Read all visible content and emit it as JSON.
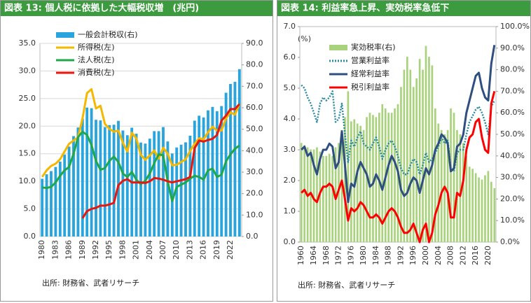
{
  "chart_data": [
    {
      "type": "combo",
      "title": "図表 13: 個人税に依拠した大幅税収増　(兆円)",
      "source": "出所: 財務省、武者リサーチ",
      "categories": [
        "1980",
        null,
        null,
        "1983",
        null,
        null,
        "1986",
        null,
        null,
        "1989",
        null,
        null,
        "1992",
        null,
        null,
        "1995",
        null,
        null,
        "1998",
        null,
        null,
        "2001",
        null,
        null,
        "2004",
        null,
        null,
        "2007",
        null,
        null,
        "2010",
        null,
        null,
        "2013",
        null,
        null,
        "2016",
        null,
        null,
        "2019",
        null,
        null,
        "2022",
        null,
        null
      ],
      "ylim": [
        0,
        35
      ],
      "yticks": [
        {
          "value": 0,
          "label": "0.0"
        },
        {
          "value": 5,
          "label": "5.0"
        },
        {
          "value": 10,
          "label": "10.0"
        },
        {
          "value": 15,
          "label": "15.0"
        },
        {
          "value": 20,
          "label": "20.0"
        },
        {
          "value": 25,
          "label": "25.0"
        },
        {
          "value": 30,
          "label": "30.0"
        },
        {
          "value": 35,
          "label": "35.0"
        }
      ],
      "y2lim": [
        0,
        90
      ],
      "y2ticks": [
        {
          "value": 0,
          "label": "0.0"
        },
        {
          "value": 10,
          "label": "10.0"
        },
        {
          "value": 20,
          "label": "20.0"
        },
        {
          "value": 30,
          "label": "30.0"
        },
        {
          "value": 40,
          "label": "40.0"
        },
        {
          "value": 50,
          "label": "50.0"
        },
        {
          "value": 60,
          "label": "60.0"
        },
        {
          "value": 70,
          "label": "70.0"
        },
        {
          "value": 80,
          "label": "80.0"
        },
        {
          "value": 90,
          "label": "90.0"
        }
      ],
      "grid": true,
      "series": [
        {
          "name": "一般会計税収(右)",
          "type": "bar",
          "axis": "y2",
          "color": "#2aa4dc",
          "values": [
            26.9,
            29.0,
            30.5,
            32.4,
            34.9,
            38.2,
            41.9,
            46.8,
            50.8,
            54.9,
            60.1,
            59.8,
            54.4,
            54.1,
            51.0,
            51.9,
            52.1,
            53.9,
            49.4,
            47.2,
            50.7,
            47.9,
            43.8,
            43.3,
            45.6,
            49.1,
            49.1,
            51.0,
            44.3,
            38.7,
            41.5,
            42.8,
            43.9,
            47.0,
            54.0,
            56.3,
            55.5,
            58.8,
            60.4,
            58.4,
            60.8,
            67.0,
            71.1,
            72.1,
            78.0
          ]
        },
        {
          "name": "所得税(左)",
          "type": "line",
          "color": "#f5b800",
          "values": [
            10.8,
            12.0,
            12.8,
            13.2,
            14.0,
            15.4,
            16.8,
            17.4,
            18.0,
            21.4,
            26.0,
            26.7,
            23.2,
            23.7,
            20.4,
            19.5,
            19.0,
            19.2,
            17.0,
            15.4,
            18.8,
            17.8,
            14.8,
            13.9,
            14.7,
            15.6,
            14.1,
            16.1,
            15.0,
            12.9,
            13.0,
            13.5,
            14.0,
            15.5,
            16.8,
            17.8,
            17.6,
            18.9,
            19.9,
            19.2,
            19.2,
            21.4,
            22.5,
            22.1,
            24.0
          ]
        },
        {
          "name": "法人税(左)",
          "type": "line",
          "color": "#1ea84a",
          "values": [
            8.9,
            8.8,
            9.0,
            9.8,
            11.0,
            12.0,
            12.6,
            15.0,
            18.0,
            19.0,
            18.4,
            16.6,
            13.7,
            12.1,
            12.4,
            13.7,
            14.5,
            13.5,
            11.4,
            10.8,
            11.7,
            10.3,
            9.5,
            10.1,
            11.4,
            13.3,
            14.9,
            14.7,
            10.0,
            6.4,
            9.0,
            9.4,
            9.8,
            10.5,
            11.0,
            10.8,
            10.3,
            12.0,
            12.3,
            10.8,
            11.2,
            13.6,
            14.9,
            15.9,
            16.5
          ]
        },
        {
          "name": "消費税(左)",
          "type": "line",
          "color": "#e8160c",
          "values": [
            null,
            null,
            null,
            null,
            null,
            null,
            null,
            null,
            null,
            3.3,
            4.6,
            5.0,
            5.2,
            5.6,
            5.6,
            5.8,
            6.1,
            9.3,
            10.1,
            10.4,
            9.8,
            9.8,
            9.8,
            9.7,
            10.0,
            10.6,
            10.5,
            10.3,
            10.0,
            9.8,
            10.0,
            10.2,
            10.4,
            10.8,
            16.0,
            17.4,
            17.2,
            17.5,
            17.7,
            18.4,
            21.0,
            21.9,
            23.1,
            23.1,
            24.0
          ]
        }
      ]
    },
    {
      "type": "combo",
      "title": "図表 14: 利益率急上昇、実効税率急低下",
      "source": "出所: 財務省、武者リサーチ",
      "ylabel": "(%)",
      "categories": [
        "1960",
        null,
        null,
        null,
        "1964",
        null,
        null,
        null,
        "1968",
        null,
        null,
        null,
        "1972",
        null,
        null,
        null,
        "1976",
        null,
        null,
        null,
        "1980",
        null,
        null,
        null,
        "1984",
        null,
        null,
        null,
        "1988",
        null,
        null,
        null,
        "1992",
        null,
        null,
        null,
        "1996",
        null,
        null,
        null,
        "2000",
        null,
        null,
        null,
        "2004",
        null,
        null,
        null,
        "2008",
        null,
        null,
        null,
        "2012",
        null,
        null,
        null,
        "2016",
        null,
        null,
        null,
        "2020",
        null,
        null
      ],
      "ylim": [
        0,
        7
      ],
      "yticks": [
        {
          "value": 0,
          "label": "0.0"
        },
        {
          "value": 1,
          "label": "1.0"
        },
        {
          "value": 2,
          "label": "2.0"
        },
        {
          "value": 3,
          "label": "3.0"
        },
        {
          "value": 4,
          "label": "4.0"
        },
        {
          "value": 5,
          "label": "5.0"
        },
        {
          "value": 6,
          "label": "6.0"
        },
        {
          "value": 7,
          "label": "7.0"
        }
      ],
      "y2lim": [
        0,
        100
      ],
      "y2ticks": [
        {
          "value": 0,
          "label": "0.0%"
        },
        {
          "value": 10,
          "label": "10.0%"
        },
        {
          "value": 20,
          "label": "20.0%"
        },
        {
          "value": 30,
          "label": "30.0%"
        },
        {
          "value": 40,
          "label": "40.0%"
        },
        {
          "value": 50,
          "label": "50.0%"
        },
        {
          "value": 60,
          "label": "60.0%"
        },
        {
          "value": 70,
          "label": "70.0%"
        },
        {
          "value": 80,
          "label": "80.0%"
        },
        {
          "value": 90,
          "label": "90.0%"
        },
        {
          "value": 100,
          "label": "100.0%"
        }
      ],
      "grid": false,
      "series": [
        {
          "name": "実効税率(右)",
          "type": "bar",
          "axis": "y2",
          "color": "#a8d27c",
          "values": [
            46,
            45,
            44,
            43,
            43,
            44,
            42,
            40,
            40,
            41,
            40,
            44,
            46,
            52,
            58,
            70,
            56,
            57,
            55,
            54,
            52,
            58,
            60,
            59,
            58,
            60,
            64,
            62,
            60,
            60,
            62,
            64,
            72,
            80,
            86,
            80,
            72,
            76,
            85,
            80,
            91,
            86,
            82,
            62,
            55,
            52,
            50,
            52,
            62,
            60,
            52,
            50,
            46,
            40,
            35,
            34,
            32,
            30,
            29,
            31,
            33,
            28,
            25
          ]
        },
        {
          "name": "営業利益率",
          "type": "line",
          "dash": true,
          "color": "#2b8aa0",
          "values": [
            5.1,
            5.0,
            4.7,
            4.5,
            4.2,
            3.9,
            4.5,
            4.7,
            4.6,
            4.7,
            4.9,
            3.9,
            4.0,
            4.5,
            3.5,
            2.6,
            3.3,
            3.1,
            3.4,
            3.6,
            3.2,
            3.1,
            3.0,
            3.2,
            3.4,
            3.1,
            2.7,
            3.0,
            3.2,
            3.3,
            3.1,
            2.8,
            2.4,
            2.2,
            2.2,
            2.5,
            2.7,
            2.6,
            2.2,
            2.5,
            2.9,
            2.6,
            2.7,
            2.9,
            3.1,
            3.4,
            3.2,
            3.3,
            2.4,
            2.3,
            2.9,
            3.0,
            3.0,
            3.5,
            3.9,
            4.1,
            4.3,
            4.4,
            4.2,
            3.9,
            3.5,
            4.4,
            4.6
          ]
        },
        {
          "name": "経常利益率",
          "type": "line",
          "color": "#2e4f7f",
          "values": [
            3.0,
            3.1,
            2.8,
            2.9,
            2.5,
            2.2,
            2.7,
            3.0,
            3.0,
            3.2,
            3.1,
            2.4,
            2.6,
            3.6,
            2.5,
            1.3,
            1.9,
            1.8,
            2.3,
            2.6,
            2.4,
            2.2,
            1.8,
            1.9,
            2.2,
            2.0,
            1.7,
            2.1,
            2.5,
            2.8,
            2.6,
            2.3,
            1.7,
            1.5,
            1.6,
            1.9,
            2.1,
            2.0,
            1.6,
            2.0,
            2.4,
            2.2,
            2.5,
            3.0,
            3.2,
            3.5,
            3.4,
            3.2,
            2.3,
            2.4,
            3.1,
            3.2,
            3.5,
            4.2,
            4.6,
            5.0,
            5.4,
            5.5,
            5.0,
            4.7,
            4.6,
            5.8,
            6.4
          ]
        },
        {
          "name": "税引利益率",
          "type": "line",
          "color": "#ff0000",
          "values": [
            1.6,
            1.7,
            1.5,
            1.6,
            1.4,
            1.3,
            1.6,
            1.8,
            1.8,
            1.9,
            1.8,
            1.4,
            1.7,
            2.0,
            1.4,
            0.7,
            1.1,
            1.0,
            1.1,
            1.3,
            1.2,
            1.0,
            0.8,
            0.8,
            0.9,
            0.8,
            0.6,
            0.8,
            1.0,
            1.1,
            1.0,
            0.8,
            0.5,
            0.3,
            0.3,
            0.4,
            0.6,
            0.3,
            0.0,
            0.4,
            0.6,
            0.0,
            0.3,
            0.9,
            1.2,
            1.6,
            1.8,
            1.6,
            0.8,
            0.8,
            1.6,
            1.5,
            2.0,
            3.0,
            3.4,
            3.5,
            3.9,
            4.0,
            3.4,
            3.0,
            2.9,
            4.5,
            4.9
          ]
        }
      ]
    }
  ]
}
